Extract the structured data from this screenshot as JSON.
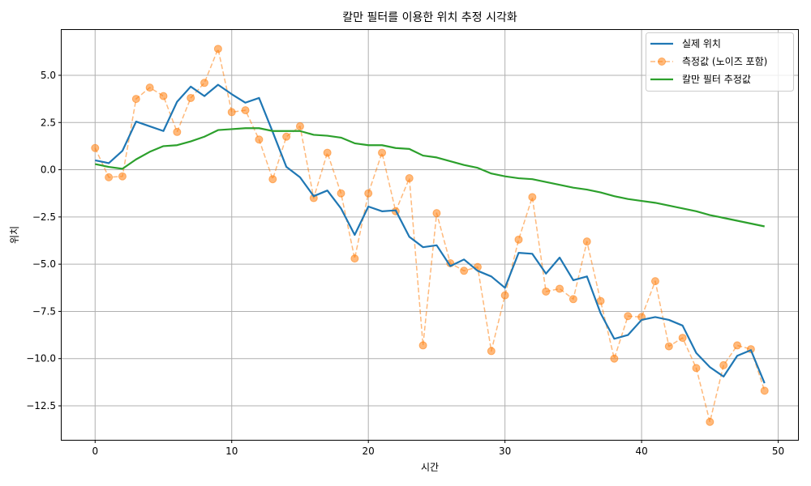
{
  "chart_data": {
    "type": "line",
    "title": "칼만 필터를 이용한 위치 추정 시각화",
    "xlabel": "시간",
    "ylabel": "위치",
    "xlim": [
      -2.45,
      51.45
    ],
    "ylim": [
      -14.3,
      7.4
    ],
    "xticks": [
      0,
      10,
      20,
      30,
      40,
      50
    ],
    "xtick_labels": [
      "0",
      "10",
      "20",
      "30",
      "40",
      "50"
    ],
    "yticks": [
      5.0,
      2.5,
      0.0,
      -2.5,
      -5.0,
      -7.5,
      -10.0,
      -12.5
    ],
    "ytick_labels": [
      "5.0",
      "2.5",
      "0.0",
      "−2.5",
      "−5.0",
      "−7.5",
      "−10.0",
      "−12.5"
    ],
    "grid": true,
    "legend_position": "top-right",
    "x": [
      0,
      1,
      2,
      3,
      4,
      5,
      6,
      7,
      8,
      9,
      10,
      11,
      12,
      13,
      14,
      15,
      16,
      17,
      18,
      19,
      20,
      21,
      22,
      23,
      24,
      25,
      26,
      27,
      28,
      29,
      30,
      31,
      32,
      33,
      34,
      35,
      36,
      37,
      38,
      39,
      40,
      41,
      42,
      43,
      44,
      45,
      46,
      47,
      48,
      49
    ],
    "series": [
      {
        "name": "실제 위치",
        "color": "#1f77b4",
        "style": "solid",
        "marker": "none",
        "values": [
          0.5,
          0.35,
          1.0,
          2.55,
          2.3,
          2.05,
          3.6,
          4.4,
          3.9,
          4.5,
          4.0,
          3.55,
          3.8,
          2.0,
          0.15,
          -0.4,
          -1.4,
          -1.1,
          -2.05,
          -3.45,
          -1.95,
          -2.2,
          -2.15,
          -3.55,
          -4.1,
          -4.0,
          -5.1,
          -4.75,
          -5.35,
          -5.65,
          -6.25,
          -4.4,
          -4.45,
          -5.5,
          -4.65,
          -5.85,
          -5.65,
          -7.6,
          -8.95,
          -8.75,
          -7.95,
          -7.8,
          -7.95,
          -8.25,
          -9.7,
          -10.45,
          -10.95,
          -9.85,
          -9.55,
          -11.3
        ]
      },
      {
        "name": "측정값 (노이즈 포함)",
        "color": "#ff7f0e",
        "style": "dashed",
        "marker": "circle",
        "values": [
          1.15,
          -0.4,
          -0.35,
          3.75,
          4.35,
          3.9,
          2.0,
          3.8,
          4.6,
          6.4,
          3.05,
          3.15,
          1.6,
          -0.5,
          1.75,
          2.3,
          -1.5,
          0.9,
          -1.25,
          -4.7,
          -1.25,
          0.9,
          -2.2,
          -0.45,
          -9.3,
          -2.3,
          -4.95,
          -5.35,
          -5.15,
          -9.6,
          -6.65,
          -3.7,
          -1.45,
          -6.45,
          -6.3,
          -6.85,
          -3.8,
          -6.95,
          -10.0,
          -7.75,
          -7.8,
          -5.9,
          -9.35,
          -8.9,
          -10.5,
          -13.35,
          -10.35,
          -9.3,
          -9.5,
          -11.7
        ]
      },
      {
        "name": "칼만 필터 추정값",
        "color": "#2ca02c",
        "style": "solid",
        "marker": "none",
        "values": [
          0.3,
          0.15,
          0.05,
          0.55,
          0.95,
          1.25,
          1.3,
          1.5,
          1.75,
          2.1,
          2.15,
          2.2,
          2.2,
          2.05,
          2.05,
          2.05,
          1.85,
          1.8,
          1.7,
          1.4,
          1.3,
          1.3,
          1.15,
          1.1,
          0.75,
          0.65,
          0.45,
          0.25,
          0.1,
          -0.2,
          -0.35,
          -0.45,
          -0.5,
          -0.65,
          -0.8,
          -0.95,
          -1.05,
          -1.2,
          -1.4,
          -1.55,
          -1.65,
          -1.75,
          -1.9,
          -2.05,
          -2.2,
          -2.4,
          -2.55,
          -2.7,
          -2.85,
          -3.0
        ]
      }
    ]
  }
}
